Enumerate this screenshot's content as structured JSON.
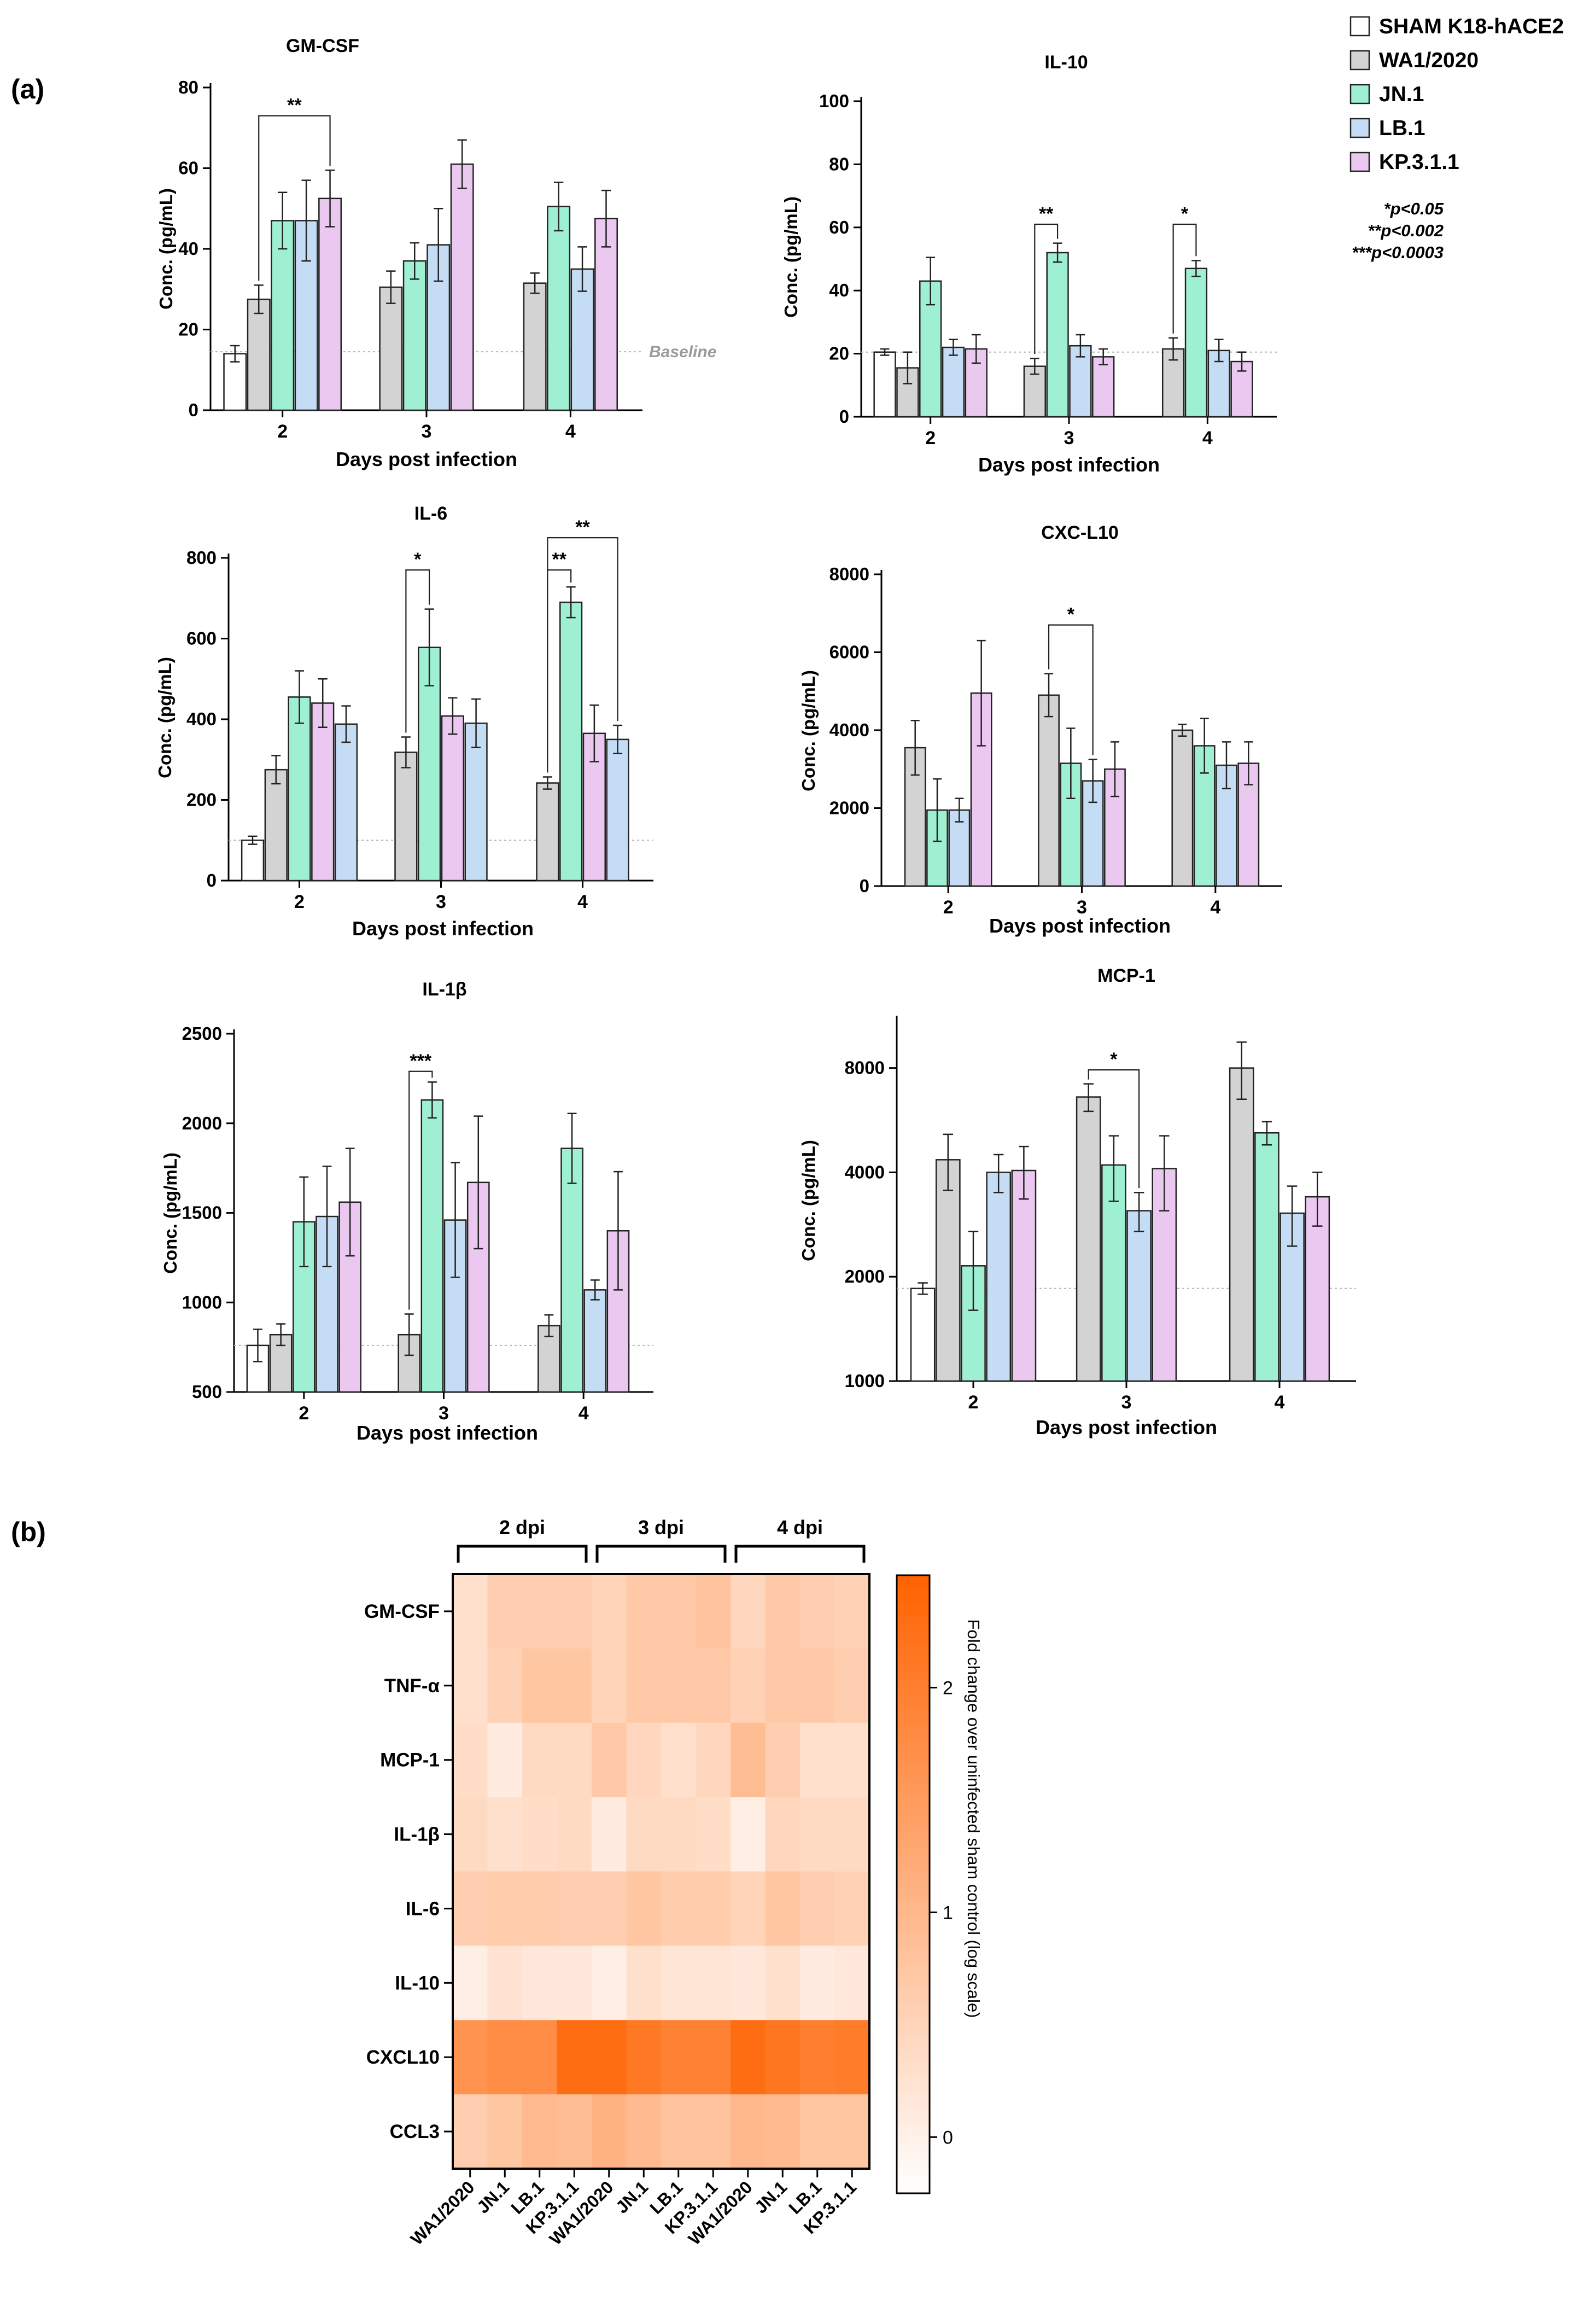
{
  "figure": {
    "panel_a_label": "(a)",
    "panel_b_label": "(b)"
  },
  "legend": {
    "items": [
      {
        "label": "SHAM K18-hACE2",
        "color": "#ffffff"
      },
      {
        "label": "WA1/2020",
        "color": "#d3d3d3"
      },
      {
        "label": "JN.1",
        "color": "#9ff0d2"
      },
      {
        "label": "LB.1",
        "color": "#c5dcf5"
      },
      {
        "label": "KP.3.1.1",
        "color": "#ebc8f0"
      }
    ],
    "pvalues": [
      "*p<0.05",
      "**p<0.002",
      "***p<0.0003"
    ]
  },
  "chart_data": [
    {
      "id": "gmcsf",
      "type": "bar",
      "title": "GM-CSF",
      "xlabel": "Days post infection",
      "ylabel": "Conc. (pg/mL)",
      "ylim": [
        0,
        80
      ],
      "yticks": [
        0,
        20,
        40,
        60,
        80
      ],
      "categories": [
        "2",
        "3",
        "4"
      ],
      "baseline_value": 14.5,
      "baseline_label": "Baseline",
      "groups": [
        {
          "category": "2",
          "bars": [
            {
              "series": "SHAM K18-hACE2",
              "value": 14,
              "err": 2
            },
            {
              "series": "WA1/2020",
              "value": 27.5,
              "err": 3.5
            },
            {
              "series": "JN.1",
              "value": 47,
              "err": 7
            },
            {
              "series": "LB.1",
              "value": 47,
              "err": 10
            },
            {
              "series": "KP.3.1.1",
              "value": 52.5,
              "err": 7
            }
          ]
        },
        {
          "category": "3",
          "bars": [
            {
              "series": "WA1/2020",
              "value": 30.5,
              "err": 4
            },
            {
              "series": "JN.1",
              "value": 37,
              "err": 4.5
            },
            {
              "series": "LB.1",
              "value": 41,
              "err": 9
            },
            {
              "series": "KP.3.1.1",
              "value": 61,
              "err": 6
            }
          ]
        },
        {
          "category": "4",
          "bars": [
            {
              "series": "WA1/2020",
              "value": 31.5,
              "err": 2.5
            },
            {
              "series": "JN.1",
              "value": 50.5,
              "err": 6
            },
            {
              "series": "LB.1",
              "value": 35,
              "err": 5.5
            },
            {
              "series": "KP.3.1.1",
              "value": 47.5,
              "err": 7
            }
          ]
        }
      ],
      "significance": [
        {
          "label": "**",
          "group": 0,
          "from": 1,
          "to": 4,
          "level": 73
        }
      ]
    },
    {
      "id": "il10",
      "type": "bar",
      "title": "IL-10",
      "xlabel": "Days post infection",
      "ylabel": "Conc. (pg/mL)",
      "ylim": [
        0,
        100
      ],
      "yticks": [
        0,
        20,
        40,
        60,
        80,
        100
      ],
      "categories": [
        "2",
        "3",
        "4"
      ],
      "baseline_value": 20.5,
      "groups": [
        {
          "category": "2",
          "bars": [
            {
              "series": "SHAM K18-hACE2",
              "value": 20.5,
              "err": 1
            },
            {
              "series": "WA1/2020",
              "value": 15.5,
              "err": 5
            },
            {
              "series": "JN.1",
              "value": 43,
              "err": 7.5
            },
            {
              "series": "LB.1",
              "value": 22,
              "err": 2.5
            },
            {
              "series": "KP.3.1.1",
              "value": 21.5,
              "err": 4.5
            }
          ]
        },
        {
          "category": "3",
          "bars": [
            {
              "series": "WA1/2020",
              "value": 16,
              "err": 2.5
            },
            {
              "series": "JN.1",
              "value": 52,
              "err": 3
            },
            {
              "series": "LB.1",
              "value": 22.5,
              "err": 3.5
            },
            {
              "series": "KP.3.1.1",
              "value": 19,
              "err": 2.5
            }
          ]
        },
        {
          "category": "4",
          "bars": [
            {
              "series": "WA1/2020",
              "value": 21.5,
              "err": 3.5
            },
            {
              "series": "JN.1",
              "value": 47,
              "err": 2.5
            },
            {
              "series": "LB.1",
              "value": 21,
              "err": 3.5
            },
            {
              "series": "KP.3.1.1",
              "value": 17.5,
              "err": 3
            }
          ]
        }
      ],
      "significance": [
        {
          "label": "**",
          "group": 1,
          "from": 0,
          "to": 1,
          "level": 61
        },
        {
          "label": "*",
          "group": 2,
          "from": 0,
          "to": 1,
          "level": 61
        }
      ]
    },
    {
      "id": "il6",
      "type": "bar",
      "title": "IL-6",
      "xlabel": "Days post infection",
      "ylabel": "Conc. (pg/mL)",
      "ylim": [
        0,
        800
      ],
      "yticks": [
        0,
        200,
        400,
        600,
        800
      ],
      "categories": [
        "2",
        "3",
        "4"
      ],
      "baseline_value": 100,
      "groups": [
        {
          "category": "2",
          "bars": [
            {
              "series": "SHAM K18-hACE2",
              "value": 100,
              "err": 10
            },
            {
              "series": "WA1/2020",
              "value": 275,
              "err": 35
            },
            {
              "series": "JN.1",
              "value": 455,
              "err": 65
            },
            {
              "series": "KP.3.1.1",
              "value": 440,
              "err": 60
            },
            {
              "series": "LB.1",
              "value": 388,
              "err": 45
            }
          ]
        },
        {
          "category": "3",
          "bars": [
            {
              "series": "WA1/2020",
              "value": 318,
              "err": 38
            },
            {
              "series": "JN.1",
              "value": 578,
              "err": 95
            },
            {
              "series": "KP.3.1.1",
              "value": 408,
              "err": 45
            },
            {
              "series": "LB.1",
              "value": 390,
              "err": 60
            }
          ]
        },
        {
          "category": "4",
          "bars": [
            {
              "series": "WA1/2020",
              "value": 242,
              "err": 15
            },
            {
              "series": "JN.1",
              "value": 690,
              "err": 38
            },
            {
              "series": "KP.3.1.1",
              "value": 365,
              "err": 70
            },
            {
              "series": "LB.1",
              "value": 350,
              "err": 35
            }
          ]
        }
      ],
      "significance": [
        {
          "label": "*",
          "group": 1,
          "from": 0,
          "to": 1,
          "level": 770
        },
        {
          "label": "**",
          "group": 2,
          "from": 0,
          "to": 1,
          "level": 770
        },
        {
          "label": "**",
          "group": 2,
          "from": 0,
          "to": 3,
          "level": 850
        }
      ]
    },
    {
      "id": "cxcl10",
      "type": "bar",
      "title": "CXC-L10",
      "xlabel": "Days post infection",
      "ylabel": "Conc. (pg/mL)",
      "ylim": [
        0,
        8000
      ],
      "yticks": [
        0,
        2000,
        4000,
        6000,
        8000
      ],
      "categories": [
        "2",
        "3",
        "4"
      ],
      "groups": [
        {
          "category": "2",
          "bars": [
            {
              "series": "WA1/2020",
              "value": 3550,
              "err": 700
            },
            {
              "series": "JN.1",
              "value": 1950,
              "err": 800
            },
            {
              "series": "LB.1",
              "value": 1950,
              "err": 300
            },
            {
              "series": "KP.3.1.1",
              "value": 4950,
              "err": 1350
            }
          ]
        },
        {
          "category": "3",
          "bars": [
            {
              "series": "WA1/2020",
              "value": 4900,
              "err": 550
            },
            {
              "series": "JN.1",
              "value": 3150,
              "err": 900
            },
            {
              "series": "LB.1",
              "value": 2700,
              "err": 550
            },
            {
              "series": "KP.3.1.1",
              "value": 3000,
              "err": 700
            }
          ]
        },
        {
          "category": "4",
          "bars": [
            {
              "series": "WA1/2020",
              "value": 4000,
              "err": 150
            },
            {
              "series": "JN.1",
              "value": 3600,
              "err": 700
            },
            {
              "series": "LB.1",
              "value": 3100,
              "err": 600
            },
            {
              "series": "KP.3.1.1",
              "value": 3150,
              "err": 550
            }
          ]
        }
      ],
      "significance": [
        {
          "label": "*",
          "group": 1,
          "from": 0,
          "to": 2,
          "level": 6700
        }
      ]
    },
    {
      "id": "il1b",
      "type": "bar",
      "title": "IL-1β",
      "xlabel": "Days post infection",
      "ylabel": "Conc. (pg/mL)",
      "ylim": [
        500,
        2500
      ],
      "yticks": [
        500,
        1000,
        1500,
        2000,
        2500
      ],
      "categories": [
        "2",
        "3",
        "4"
      ],
      "baseline_value": 760,
      "groups": [
        {
          "category": "2",
          "bars": [
            {
              "series": "SHAM K18-hACE2",
              "value": 760,
              "err": 90
            },
            {
              "series": "WA1/2020",
              "value": 820,
              "err": 60
            },
            {
              "series": "JN.1",
              "value": 1450,
              "err": 250
            },
            {
              "series": "LB.1",
              "value": 1480,
              "err": 280
            },
            {
              "series": "KP.3.1.1",
              "value": 1560,
              "err": 300
            }
          ]
        },
        {
          "category": "3",
          "bars": [
            {
              "series": "WA1/2020",
              "value": 820,
              "err": 115
            },
            {
              "series": "JN.1",
              "value": 2130,
              "err": 100
            },
            {
              "series": "LB.1",
              "value": 1460,
              "err": 320
            },
            {
              "series": "KP.3.1.1",
              "value": 1670,
              "err": 370
            }
          ]
        },
        {
          "category": "4",
          "bars": [
            {
              "series": "WA1/2020",
              "value": 870,
              "err": 60
            },
            {
              "series": "JN.1",
              "value": 1860,
              "err": 195
            },
            {
              "series": "LB.1",
              "value": 1070,
              "err": 55
            },
            {
              "series": "KP.3.1.1",
              "value": 1400,
              "err": 330
            }
          ]
        }
      ],
      "significance": [
        {
          "label": "***",
          "group": 1,
          "from": 0,
          "to": 1,
          "level": 2290
        }
      ]
    },
    {
      "id": "mcp1",
      "type": "bar",
      "title": "MCP-1",
      "xlabel": "Days post infection",
      "ylabel": "Conc. (pg/mL)",
      "yscale": "log",
      "ylim": [
        1000,
        11000
      ],
      "yticks": [
        1000,
        2000,
        4000,
        8000
      ],
      "categories": [
        "2",
        "3",
        "4"
      ],
      "baseline_value": 1850,
      "groups": [
        {
          "category": "2",
          "bars": [
            {
              "series": "SHAM K18-hACE2",
              "value": 1850,
              "err": 70
            },
            {
              "series": "WA1/2020",
              "value": 4350,
              "err": 800
            },
            {
              "series": "JN.1",
              "value": 2150,
              "err": 550
            },
            {
              "series": "LB.1",
              "value": 4000,
              "err": 500
            },
            {
              "series": "KP.3.1.1",
              "value": 4050,
              "err": 700
            }
          ]
        },
        {
          "category": "3",
          "bars": [
            {
              "series": "WA1/2020",
              "value": 6600,
              "err": 600
            },
            {
              "series": "JN.1",
              "value": 4200,
              "err": 900
            },
            {
              "series": "LB.1",
              "value": 3100,
              "err": 400
            },
            {
              "series": "KP.3.1.1",
              "value": 4100,
              "err": 1000
            }
          ]
        },
        {
          "category": "4",
          "bars": [
            {
              "series": "WA1/2020",
              "value": 8000,
              "err": 1500
            },
            {
              "series": "JN.1",
              "value": 5200,
              "err": 400
            },
            {
              "series": "LB.1",
              "value": 3050,
              "err": 600
            },
            {
              "series": "KP.3.1.1",
              "value": 3400,
              "err": 600
            }
          ]
        }
      ],
      "significance": [
        {
          "label": "*",
          "group": 1,
          "from": 0,
          "to": 2,
          "level": 7900
        }
      ]
    },
    {
      "id": "heatmap",
      "type": "heatmap",
      "group_labels": [
        "2 dpi",
        "3 dpi",
        "4 dpi"
      ],
      "x": [
        "WA1/2020",
        "JN.1",
        "LB.1",
        "KP.3.1.1",
        "WA1/2020",
        "JN.1",
        "LB.1",
        "KP.3.1.1",
        "WA1/2020",
        "JN.1",
        "LB.1",
        "KP.3.1.1"
      ],
      "y": [
        "GM-CSF",
        "TNF-α",
        "MCP-1",
        "IL-1β",
        "IL-6",
        "IL-10",
        "CXCL10",
        "CCL3"
      ],
      "colorbar": {
        "label": "Fold change over uninfected sham control (log scale)",
        "range": [
          -0.25,
          2.5
        ],
        "ticks": [
          0,
          1,
          2
        ],
        "colors": [
          "#ffffff",
          "#ff6200"
        ]
      },
      "values": [
        [
          0.3,
          0.6,
          0.6,
          0.6,
          0.5,
          0.7,
          0.7,
          0.8,
          0.45,
          0.7,
          0.6,
          0.55
        ],
        [
          0.3,
          0.55,
          0.75,
          0.75,
          0.5,
          0.7,
          0.7,
          0.7,
          0.55,
          0.7,
          0.7,
          0.6
        ],
        [
          0.35,
          0.1,
          0.4,
          0.4,
          0.7,
          0.45,
          0.3,
          0.45,
          0.9,
          0.6,
          0.3,
          0.3
        ],
        [
          0.4,
          0.3,
          0.35,
          0.4,
          0.1,
          0.4,
          0.4,
          0.35,
          0.05,
          0.45,
          0.4,
          0.4
        ],
        [
          0.6,
          0.65,
          0.65,
          0.6,
          0.6,
          0.75,
          0.65,
          0.65,
          0.5,
          0.75,
          0.6,
          0.55
        ],
        [
          0.05,
          0.25,
          0.15,
          0.15,
          0.05,
          0.3,
          0.2,
          0.2,
          0.15,
          0.3,
          0.1,
          0.15
        ],
        [
          1.65,
          1.75,
          1.75,
          2.3,
          2.3,
          2.1,
          1.95,
          1.95,
          2.3,
          2.15,
          2.0,
          2.05
        ],
        [
          0.6,
          0.75,
          0.95,
          0.9,
          1.1,
          0.95,
          0.8,
          0.8,
          1.0,
          0.95,
          0.75,
          0.75
        ]
      ]
    }
  ]
}
